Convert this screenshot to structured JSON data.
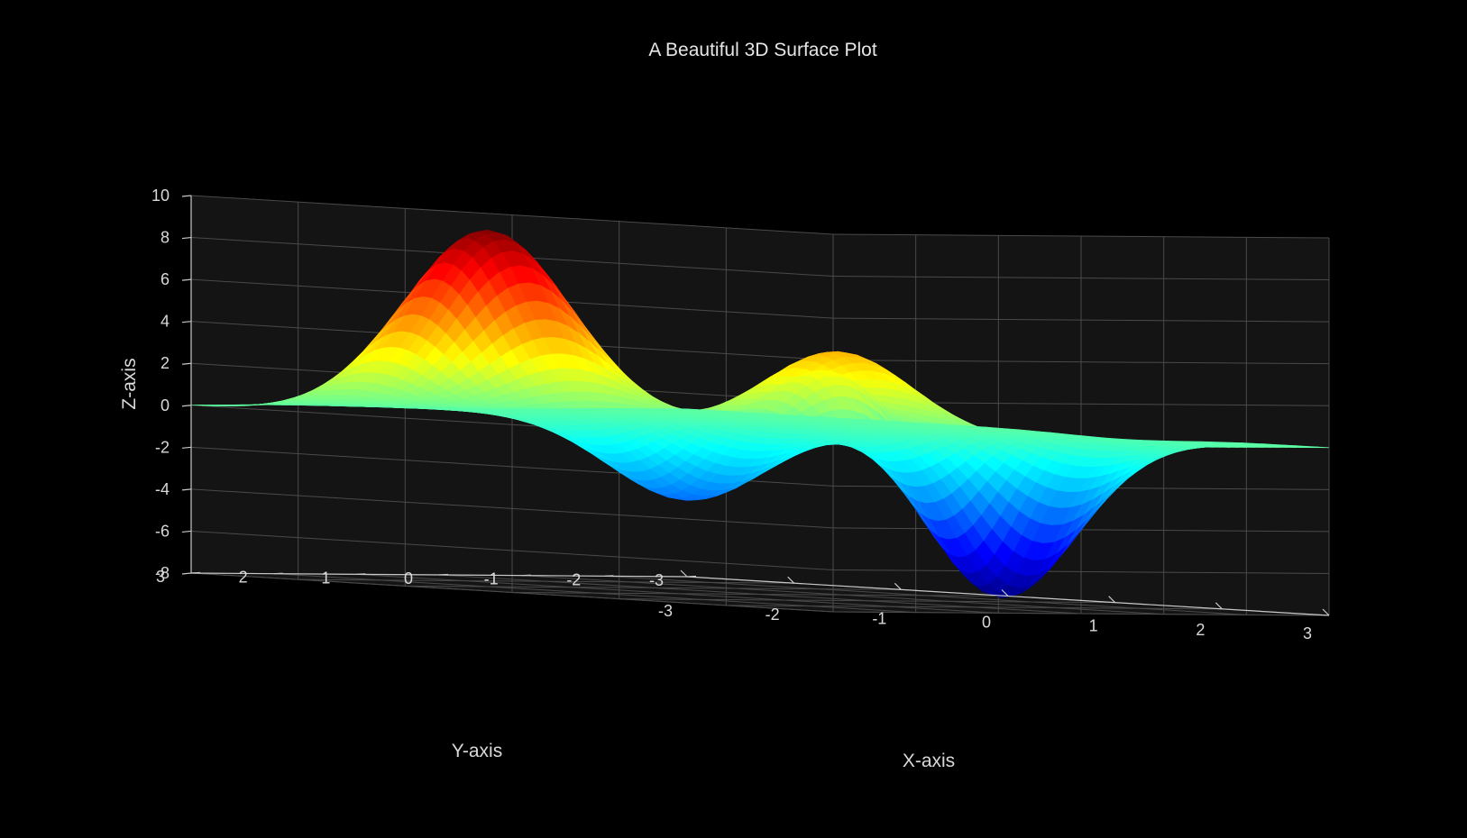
{
  "chart_data": {
    "type": "surface",
    "title": "A Beautiful 3D Surface Plot",
    "xlabel": "X-axis",
    "ylabel": "Y-axis",
    "zlabel": "Z-axis",
    "xlim": [
      -3,
      3
    ],
    "ylim": [
      -3,
      3
    ],
    "zlim": [
      -8,
      10
    ],
    "xticks": [
      "-3",
      "-2",
      "-1",
      "0",
      "1",
      "2",
      "3"
    ],
    "yticks": [
      "-3",
      "-2",
      "-1",
      "0",
      "1",
      "2",
      "3"
    ],
    "zticks": [
      "-8",
      "-6",
      "-4",
      "-2",
      "0",
      "2",
      "4",
      "6",
      "8",
      "10"
    ],
    "colormap": "jet",
    "background": "#000000",
    "pane_color": "#141414",
    "grid": true,
    "peaks": [
      {
        "x": -1.0,
        "y": 2.0,
        "z": 9.0
      },
      {
        "x": 1.5,
        "y": 1.0,
        "z": 4.0
      },
      {
        "x": 0.5,
        "y": -0.2,
        "z": 3.0
      },
      {
        "x": -1.3,
        "y": -0.8,
        "z": -3.9
      },
      {
        "x": 1.1,
        "y": -1.5,
        "z": -7.8
      }
    ]
  }
}
